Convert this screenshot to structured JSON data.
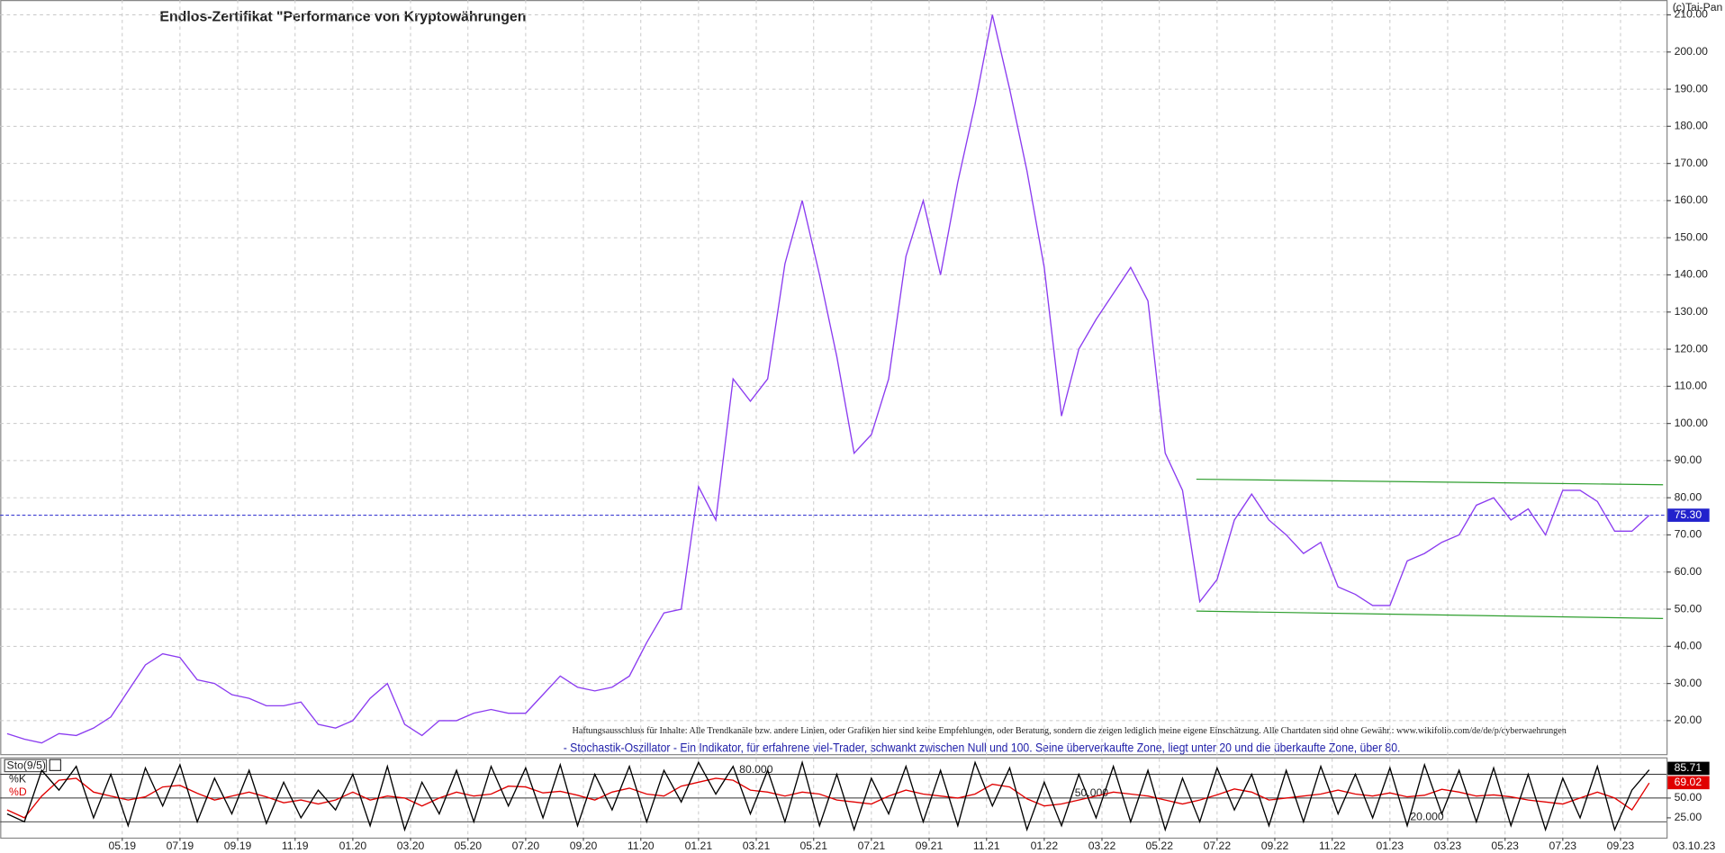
{
  "chart_data": {
    "type": "line",
    "title": "Endlos-Zertifikat \"Performance von Kryptowährungen",
    "copyright": "(c)Tai-Pan",
    "disclaimer": "Haftungsausschluss für Inhalte: Alle Trendkanäle bzw. andere Linien, oder Grafiken hier sind keine Empfehlungen, oder Beratung, sondern die zeigen lediglich meine eigene Einschätzung. Alle Chartdaten sind ohne Gewähr.: www.wikifolio.com/de/de/p/cyberwaehrungen",
    "date_label": "03.10.23",
    "x": [
      2019,
      2019.05,
      2019.1,
      2019.15,
      2019.2,
      2019.25,
      2019.3,
      2019.35,
      2019.4,
      2019.45,
      2019.5,
      2019.55,
      2019.6,
      2019.65,
      2019.7,
      2019.75,
      2019.8,
      2019.85,
      2019.9,
      2019.95,
      2020,
      2020.05,
      2020.1,
      2020.15,
      2020.2,
      2020.25,
      2020.3,
      2020.35,
      2020.4,
      2020.45,
      2020.5,
      2020.55,
      2020.6,
      2020.65,
      2020.7,
      2020.75,
      2020.8,
      2020.85,
      2020.9,
      2020.95,
      2021,
      2021.05,
      2021.1,
      2021.15,
      2021.2,
      2021.25,
      2021.3,
      2021.35,
      2021.4,
      2021.45,
      2021.5,
      2021.55,
      2021.6,
      2021.65,
      2021.7,
      2021.75,
      2021.8,
      2021.85,
      2021.9,
      2021.95,
      2022,
      2022.05,
      2022.1,
      2022.15,
      2022.2,
      2022.25,
      2022.3,
      2022.35,
      2022.4,
      2022.45,
      2022.5,
      2022.55,
      2022.6,
      2022.65,
      2022.7,
      2022.75,
      2022.8,
      2022.85,
      2022.9,
      2022.95,
      2023,
      2023.05,
      2023.1,
      2023.15,
      2023.2,
      2023.25,
      2023.3,
      2023.35,
      2023.4,
      2023.45,
      2023.5,
      2023.55,
      2023.6,
      2023.65,
      2023.7,
      2023.75
    ],
    "series": [
      {
        "color": "#8b3cf0",
        "values": [
          16.5,
          15,
          14,
          16.5,
          16,
          18,
          21,
          28,
          35,
          38,
          37,
          31,
          30,
          27,
          26,
          24,
          24,
          25,
          19,
          18,
          20,
          26,
          30,
          19,
          16,
          20,
          20,
          22,
          23,
          22,
          22,
          27,
          32,
          29,
          28,
          29,
          32,
          41,
          49,
          50,
          83,
          74,
          112,
          106,
          112,
          143,
          160,
          140,
          118,
          92,
          97,
          112,
          145,
          160,
          140,
          165,
          186,
          210,
          190,
          168,
          142,
          102,
          120,
          128,
          135,
          142,
          133,
          92,
          82,
          52,
          58,
          74,
          81,
          74,
          70,
          65,
          68,
          56,
          54,
          51,
          51,
          63,
          65,
          68,
          70,
          78,
          80,
          74,
          77,
          70,
          82,
          82,
          79,
          71,
          71,
          75.3
        ]
      }
    ],
    "xlim": [
      2018.98,
      2023.8
    ],
    "ylim": [
      11,
      214
    ],
    "xticks": [
      {
        "value": 2019.333,
        "label": "05.19"
      },
      {
        "value": 2019.5,
        "label": "07.19"
      },
      {
        "value": 2019.667,
        "label": "09.19"
      },
      {
        "value": 2019.833,
        "label": "11.19"
      },
      {
        "value": 2020,
        "label": "01.20"
      },
      {
        "value": 2020.167,
        "label": "03.20"
      },
      {
        "value": 2020.333,
        "label": "05.20"
      },
      {
        "value": 2020.5,
        "label": "07.20"
      },
      {
        "value": 2020.667,
        "label": "09.20"
      },
      {
        "value": 2020.833,
        "label": "11.20"
      },
      {
        "value": 2021,
        "label": "01.21"
      },
      {
        "value": 2021.167,
        "label": "03.21"
      },
      {
        "value": 2021.333,
        "label": "05.21"
      },
      {
        "value": 2021.5,
        "label": "07.21"
      },
      {
        "value": 2021.667,
        "label": "09.21"
      },
      {
        "value": 2021.833,
        "label": "11.21"
      },
      {
        "value": 2022,
        "label": "01.22"
      },
      {
        "value": 2022.167,
        "label": "03.22"
      },
      {
        "value": 2022.333,
        "label": "05.22"
      },
      {
        "value": 2022.5,
        "label": "07.22"
      },
      {
        "value": 2022.667,
        "label": "09.22"
      },
      {
        "value": 2022.833,
        "label": "11.22"
      },
      {
        "value": 2023,
        "label": "01.23"
      },
      {
        "value": 2023.167,
        "label": "03.23"
      },
      {
        "value": 2023.333,
        "label": "05.23"
      },
      {
        "value": 2023.5,
        "label": "07.23"
      },
      {
        "value": 2023.667,
        "label": "09.23"
      }
    ],
    "yticks": [
      {
        "value": 20,
        "label": "20.00"
      },
      {
        "value": 30,
        "label": "30.00"
      },
      {
        "value": 40,
        "label": "40.00"
      },
      {
        "value": 50,
        "label": "50.00"
      },
      {
        "value": 60,
        "label": "60.00"
      },
      {
        "value": 70,
        "label": "70.00"
      },
      {
        "value": 80,
        "label": "80.00"
      },
      {
        "value": 90,
        "label": "90.00"
      },
      {
        "value": 100,
        "label": "100.00"
      },
      {
        "value": 110,
        "label": "110.00"
      },
      {
        "value": 120,
        "label": "120.00"
      },
      {
        "value": 130,
        "label": "130.00"
      },
      {
        "value": 140,
        "label": "140.00"
      },
      {
        "value": 150,
        "label": "150.00"
      },
      {
        "value": 160,
        "label": "160.00"
      },
      {
        "value": 170,
        "label": "170.00"
      },
      {
        "value": 180,
        "label": "180.00"
      },
      {
        "value": 190,
        "label": "190.00"
      },
      {
        "value": 200,
        "label": "200.00"
      },
      {
        "value": 210,
        "label": "210.00"
      }
    ],
    "grid": true,
    "current": {
      "value": 75.3,
      "label": "75.30",
      "color": "#2222cc"
    },
    "trendlines": [
      {
        "color": "#2e9e2e",
        "x": [
          2022.44,
          2023.79
        ],
        "values": [
          85,
          83.5
        ]
      },
      {
        "color": "#2e9e2e",
        "x": [
          2022.44,
          2023.79
        ],
        "values": [
          49.5,
          47.5
        ]
      }
    ],
    "oscillator": {
      "type": "line",
      "label": "Sto(9/5)",
      "description": "- Stochastik-Oszillator - Ein Indikator, für erfahrene viel-Trader, schwankt zwischen Null und 100. Seine überverkaufte Zone, liegt unter 20 und die überkaufte Zone, über 80.",
      "ylim": [
        0,
        100
      ],
      "yticks": [
        {
          "value": 50,
          "label": "50.00"
        },
        {
          "value": 25,
          "label": "25.00"
        }
      ],
      "levels": [
        {
          "value": 80,
          "label": "80.000"
        },
        {
          "value": 50,
          "label": "50.000"
        },
        {
          "value": 20,
          "label": "20.000"
        }
      ],
      "series": [
        {
          "name": "%K",
          "color": "#000000",
          "values": [
            30,
            20,
            85,
            60,
            90,
            25,
            80,
            15,
            88,
            40,
            92,
            20,
            75,
            30,
            85,
            18,
            70,
            25,
            60,
            35,
            80,
            15,
            90,
            10,
            70,
            30,
            85,
            20,
            90,
            40,
            88,
            25,
            92,
            15,
            80,
            35,
            90,
            20,
            85,
            45,
            95,
            55,
            90,
            30,
            85,
            20,
            95,
            15,
            80,
            10,
            75,
            30,
            90,
            20,
            85,
            15,
            95,
            40,
            88,
            10,
            70,
            15,
            80,
            25,
            90,
            20,
            85,
            10,
            75,
            20,
            88,
            35,
            80,
            15,
            85,
            20,
            90,
            30,
            80,
            25,
            88,
            15,
            92,
            30,
            85,
            20,
            88,
            15,
            80,
            10,
            75,
            25,
            90,
            10,
            60,
            85.71
          ]
        },
        {
          "name": "%D",
          "color": "#e00000",
          "values": [
            35,
            25,
            52.5,
            72.5,
            75,
            57.5,
            52.5,
            47.5,
            51.5,
            64,
            66,
            56,
            47.5,
            52.5,
            57.5,
            51.5,
            44,
            47.5,
            42.5,
            47.5,
            57.5,
            47.5,
            52.5,
            50,
            40,
            50,
            57.5,
            52.5,
            55,
            65,
            64,
            56.5,
            58.5,
            53.5,
            47.5,
            57.5,
            62.5,
            55,
            52.5,
            65,
            70,
            75,
            72.5,
            60,
            57.5,
            52.5,
            57.5,
            55,
            47.5,
            45,
            42.5,
            52.5,
            60,
            55,
            52.5,
            50,
            55,
            67.5,
            64,
            49,
            40,
            42.5,
            47.5,
            52.5,
            57.5,
            55,
            52.5,
            47.5,
            42.5,
            47.5,
            54,
            61.5,
            57.5,
            47.5,
            50,
            52.5,
            55,
            60,
            55,
            52.5,
            56.5,
            51.5,
            53.5,
            61,
            57.5,
            52.5,
            54,
            51.5,
            47.5,
            45,
            42.5,
            50,
            57.5,
            50,
            35,
            69.02
          ]
        }
      ]
    }
  }
}
